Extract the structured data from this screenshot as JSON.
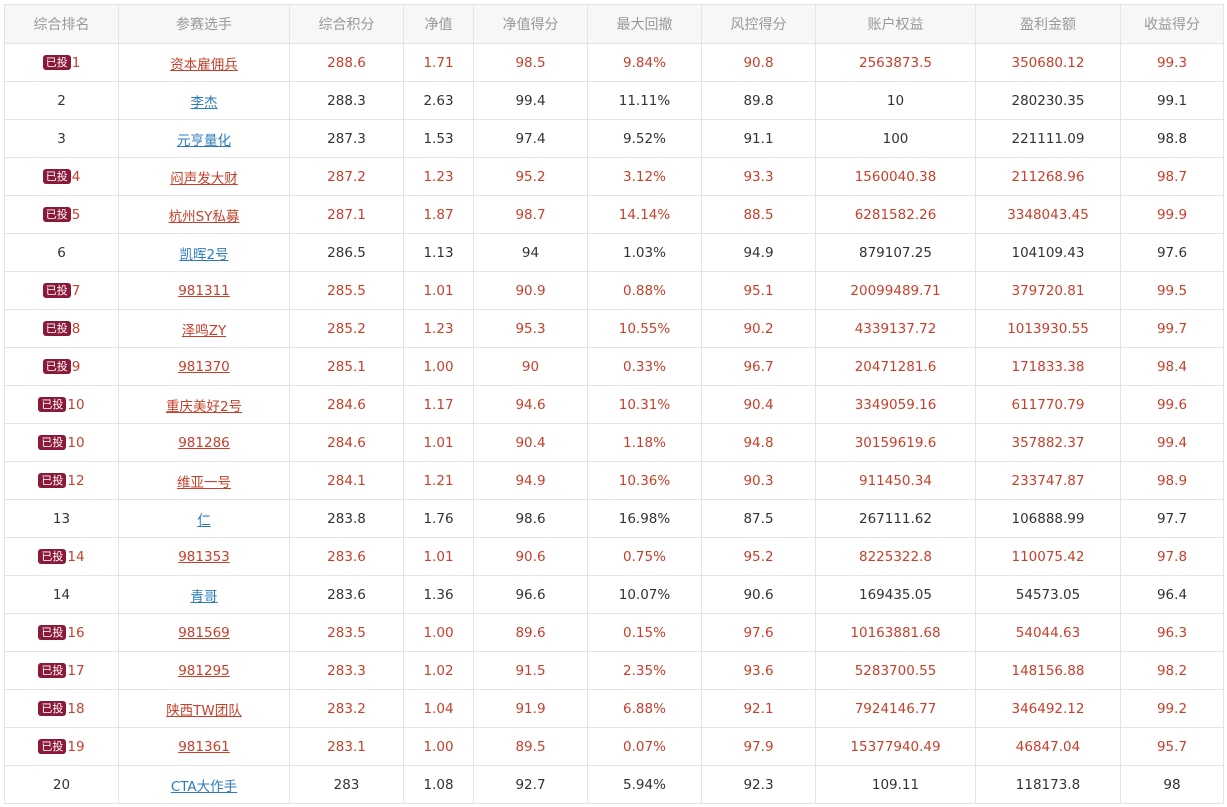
{
  "headers": [
    "综合排名",
    "参赛选手",
    "综合积分",
    "净值",
    "净值得分",
    "最大回撤",
    "风控得分",
    "账户权益",
    "盈利金额",
    "收益得分"
  ],
  "badge_label": "已投",
  "colors": {
    "invested_text": "#c7402b",
    "normal_link": "#2d7bbd",
    "badge_bg": "#8b1a3a",
    "border": "#e4e4e4",
    "header_bg": "#f7f7f7"
  },
  "rows": [
    {
      "invested": true,
      "rank": "1",
      "name": "资本雇佣兵",
      "score": "288.6",
      "nav": "1.71",
      "nav_score": "98.5",
      "max_dd": "9.84%",
      "risk_score": "90.8",
      "equity": "2563873.5",
      "profit": "350680.12",
      "return_score": "99.3"
    },
    {
      "invested": false,
      "rank": "2",
      "name": "李杰",
      "score": "288.3",
      "nav": "2.63",
      "nav_score": "99.4",
      "max_dd": "11.11%",
      "risk_score": "89.8",
      "equity": "10",
      "profit": "280230.35",
      "return_score": "99.1"
    },
    {
      "invested": false,
      "rank": "3",
      "name": "元亨量化",
      "score": "287.3",
      "nav": "1.53",
      "nav_score": "97.4",
      "max_dd": "9.52%",
      "risk_score": "91.1",
      "equity": "100",
      "profit": "221111.09",
      "return_score": "98.8"
    },
    {
      "invested": true,
      "rank": "4",
      "name": "闷声发大财",
      "score": "287.2",
      "nav": "1.23",
      "nav_score": "95.2",
      "max_dd": "3.12%",
      "risk_score": "93.3",
      "equity": "1560040.38",
      "profit": "211268.96",
      "return_score": "98.7"
    },
    {
      "invested": true,
      "rank": "5",
      "name": "杭州SY私募",
      "score": "287.1",
      "nav": "1.87",
      "nav_score": "98.7",
      "max_dd": "14.14%",
      "risk_score": "88.5",
      "equity": "6281582.26",
      "profit": "3348043.45",
      "return_score": "99.9"
    },
    {
      "invested": false,
      "rank": "6",
      "name": "凯晖2号",
      "score": "286.5",
      "nav": "1.13",
      "nav_score": "94",
      "max_dd": "1.03%",
      "risk_score": "94.9",
      "equity": "879107.25",
      "profit": "104109.43",
      "return_score": "97.6"
    },
    {
      "invested": true,
      "rank": "7",
      "name": "981311",
      "score": "285.5",
      "nav": "1.01",
      "nav_score": "90.9",
      "max_dd": "0.88%",
      "risk_score": "95.1",
      "equity": "20099489.71",
      "profit": "379720.81",
      "return_score": "99.5"
    },
    {
      "invested": true,
      "rank": "8",
      "name": "泽鸣ZY",
      "score": "285.2",
      "nav": "1.23",
      "nav_score": "95.3",
      "max_dd": "10.55%",
      "risk_score": "90.2",
      "equity": "4339137.72",
      "profit": "1013930.55",
      "return_score": "99.7"
    },
    {
      "invested": true,
      "rank": "9",
      "name": "981370",
      "score": "285.1",
      "nav": "1.00",
      "nav_score": "90",
      "max_dd": "0.33%",
      "risk_score": "96.7",
      "equity": "20471281.6",
      "profit": "171833.38",
      "return_score": "98.4"
    },
    {
      "invested": true,
      "rank": "10",
      "name": "重庆美好2号",
      "score": "284.6",
      "nav": "1.17",
      "nav_score": "94.6",
      "max_dd": "10.31%",
      "risk_score": "90.4",
      "equity": "3349059.16",
      "profit": "611770.79",
      "return_score": "99.6"
    },
    {
      "invested": true,
      "rank": "10",
      "name": "981286",
      "score": "284.6",
      "nav": "1.01",
      "nav_score": "90.4",
      "max_dd": "1.18%",
      "risk_score": "94.8",
      "equity": "30159619.6",
      "profit": "357882.37",
      "return_score": "99.4"
    },
    {
      "invested": true,
      "rank": "12",
      "name": "维亚一号",
      "score": "284.1",
      "nav": "1.21",
      "nav_score": "94.9",
      "max_dd": "10.36%",
      "risk_score": "90.3",
      "equity": "911450.34",
      "profit": "233747.87",
      "return_score": "98.9"
    },
    {
      "invested": false,
      "rank": "13",
      "name": "仁",
      "score": "283.8",
      "nav": "1.76",
      "nav_score": "98.6",
      "max_dd": "16.98%",
      "risk_score": "87.5",
      "equity": "267111.62",
      "profit": "106888.99",
      "return_score": "97.7"
    },
    {
      "invested": true,
      "rank": "14",
      "name": "981353",
      "score": "283.6",
      "nav": "1.01",
      "nav_score": "90.6",
      "max_dd": "0.75%",
      "risk_score": "95.2",
      "equity": "8225322.8",
      "profit": "110075.42",
      "return_score": "97.8"
    },
    {
      "invested": false,
      "rank": "14",
      "name": "青哥",
      "score": "283.6",
      "nav": "1.36",
      "nav_score": "96.6",
      "max_dd": "10.07%",
      "risk_score": "90.6",
      "equity": "169435.05",
      "profit": "54573.05",
      "return_score": "96.4"
    },
    {
      "invested": true,
      "rank": "16",
      "name": "981569",
      "score": "283.5",
      "nav": "1.00",
      "nav_score": "89.6",
      "max_dd": "0.15%",
      "risk_score": "97.6",
      "equity": "10163881.68",
      "profit": "54044.63",
      "return_score": "96.3"
    },
    {
      "invested": true,
      "rank": "17",
      "name": "981295",
      "score": "283.3",
      "nav": "1.02",
      "nav_score": "91.5",
      "max_dd": "2.35%",
      "risk_score": "93.6",
      "equity": "5283700.55",
      "profit": "148156.88",
      "return_score": "98.2"
    },
    {
      "invested": true,
      "rank": "18",
      "name": "陕西TW团队",
      "score": "283.2",
      "nav": "1.04",
      "nav_score": "91.9",
      "max_dd": "6.88%",
      "risk_score": "92.1",
      "equity": "7924146.77",
      "profit": "346492.12",
      "return_score": "99.2"
    },
    {
      "invested": true,
      "rank": "19",
      "name": "981361",
      "score": "283.1",
      "nav": "1.00",
      "nav_score": "89.5",
      "max_dd": "0.07%",
      "risk_score": "97.9",
      "equity": "15377940.49",
      "profit": "46847.04",
      "return_score": "95.7"
    },
    {
      "invested": false,
      "rank": "20",
      "name": "CTA大作手",
      "score": "283",
      "nav": "1.08",
      "nav_score": "92.7",
      "max_dd": "5.94%",
      "risk_score": "92.3",
      "equity": "109.11",
      "profit": "118173.8",
      "return_score": "98"
    }
  ]
}
